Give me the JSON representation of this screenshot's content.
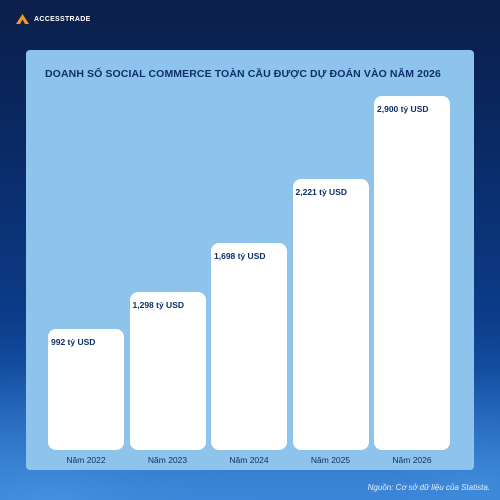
{
  "brand": {
    "name": "ACCESSTRADE"
  },
  "source": "Nguồn: Cơ sở dữ liệu của Statista.",
  "colors": {
    "panel": "#8ec4ec",
    "bar": "#ffffff",
    "text": "#0d2f6b",
    "logo_accent": "#f39a1e"
  },
  "chart_data": {
    "type": "bar",
    "title": "DOANH SỐ SOCIAL COMMERCE TOÀN CẦU ĐƯỢC DỰ ĐOÁN VÀO NĂM 2026",
    "categories": [
      "Năm 2022",
      "Năm 2023",
      "Năm 2024",
      "Năm 2025",
      "Năm 2026"
    ],
    "values": [
      992,
      1298,
      1698,
      2221,
      2900
    ],
    "value_labels": [
      "992 tỷ USD",
      "1,298 tỷ USD",
      "1,698 tỷ USD",
      "2,221 tỷ USD",
      "2,900 tỷ USD"
    ],
    "ylim": [
      0,
      2900
    ],
    "grid": false,
    "xlabel": "",
    "ylabel": ""
  }
}
